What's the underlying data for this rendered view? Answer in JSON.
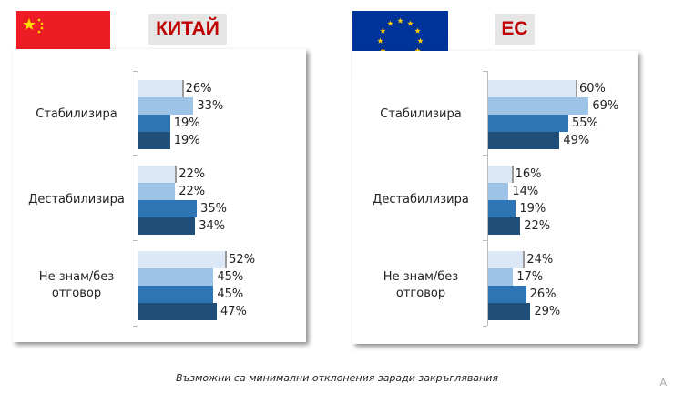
{
  "colors": [
    "#dce8f6",
    "#9dc3e6",
    "#2e75b6",
    "#1f4e79"
  ],
  "chart_data": [
    {
      "type": "bar",
      "orientation": "horizontal",
      "title": "КИТАЙ",
      "flag": "china-flag",
      "categories": [
        "Стабилизира",
        "Дестабилизира",
        "Не знам/без отговор"
      ],
      "series": [
        {
          "values": [
            26,
            22,
            52
          ]
        },
        {
          "values": [
            33,
            22,
            45
          ]
        },
        {
          "values": [
            19,
            35,
            45
          ]
        },
        {
          "values": [
            19,
            34,
            47
          ]
        }
      ],
      "unit": "%",
      "grid": false
    },
    {
      "type": "bar",
      "orientation": "horizontal",
      "title": "ЕС",
      "flag": "eu-flag",
      "categories": [
        "Стабилизира",
        "Дестабилизира",
        "Не знам/без отговор"
      ],
      "series": [
        {
          "values": [
            60,
            16,
            24
          ]
        },
        {
          "values": [
            69,
            14,
            17
          ]
        },
        {
          "values": [
            55,
            19,
            26
          ]
        },
        {
          "values": [
            49,
            22,
            29
          ]
        }
      ],
      "unit": "%",
      "grid": false
    }
  ],
  "footer": {
    "note": "Възможни са минимални отклонения заради закръглявания",
    "corner": "A"
  }
}
